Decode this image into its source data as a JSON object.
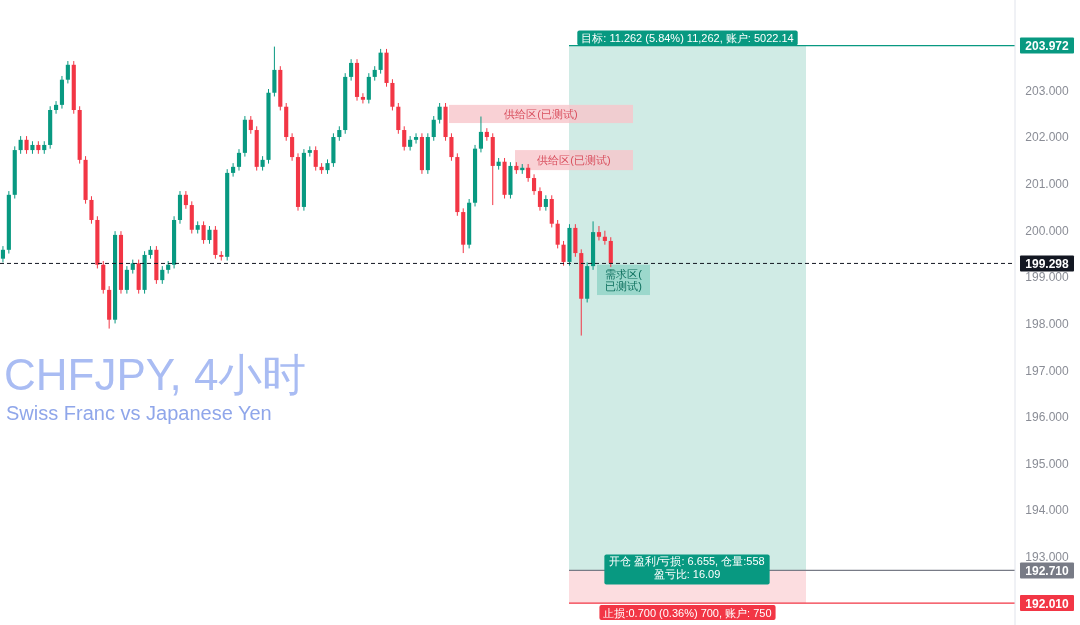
{
  "chart_data": {
    "type": "candlestick",
    "title": "CHFJPY, 4小时",
    "subtitle": "Swiss Franc vs Japanese Yen",
    "categories": [
      null,
      null,
      null,
      null,
      null,
      null,
      null,
      null,
      null,
      null,
      null,
      null,
      null,
      null,
      null,
      null,
      null,
      null,
      null,
      null,
      null,
      null,
      null,
      null,
      null,
      null,
      null,
      null,
      null,
      null,
      null,
      null,
      null,
      null,
      null,
      null,
      null,
      null,
      null,
      null,
      null,
      null,
      null,
      null,
      null,
      null,
      null,
      null,
      null,
      null,
      null,
      null,
      null,
      null,
      null,
      null,
      null,
      null,
      null,
      null,
      null,
      null,
      null,
      null,
      null,
      null,
      null,
      null,
      null,
      null,
      null,
      null,
      null,
      null,
      null,
      null,
      null,
      null,
      null,
      null,
      null,
      null,
      null,
      null,
      null,
      null,
      null,
      null,
      null,
      null,
      null,
      null,
      null,
      null,
      null,
      null,
      null,
      null,
      null,
      null,
      null,
      null,
      null,
      null,
      null,
      null,
      null,
      null,
      null,
      null,
      null,
      null,
      null,
      null,
      null,
      null,
      null,
      null,
      null,
      null,
      null,
      null,
      null,
      null,
      null,
      null,
      null,
      null,
      null,
      null,
      null,
      null,
      null,
      null,
      null,
      null,
      null,
      null,
      null,
      null,
      null,
      null,
      null,
      null,
      null,
      null,
      null,
      null,
      null,
      null,
      null,
      null,
      null,
      null,
      null,
      null,
      null,
      null,
      null,
      null,
      null,
      null,
      null,
      null,
      null,
      null,
      null,
      null,
      null,
      null,
      null,
      null
    ],
    "ohlc": [
      [
        199.4,
        199.67,
        199.32,
        199.59
      ],
      [
        199.59,
        200.85,
        199.51,
        200.77
      ],
      [
        200.77,
        201.81,
        200.69,
        201.73
      ],
      [
        201.73,
        202.03,
        201.65,
        201.95
      ],
      [
        201.95,
        202.03,
        201.65,
        201.73
      ],
      [
        201.73,
        201.92,
        201.65,
        201.84
      ],
      [
        201.84,
        201.92,
        201.65,
        201.73
      ],
      [
        201.73,
        201.92,
        201.65,
        201.84
      ],
      [
        201.84,
        202.67,
        201.76,
        202.59
      ],
      [
        202.59,
        202.78,
        202.51,
        202.7
      ],
      [
        202.7,
        203.32,
        202.62,
        203.24
      ],
      [
        203.24,
        203.64,
        203.16,
        203.56
      ],
      [
        203.56,
        203.64,
        202.51,
        202.59
      ],
      [
        202.59,
        202.67,
        201.44,
        201.52
      ],
      [
        201.52,
        201.6,
        200.58,
        200.66
      ],
      [
        200.66,
        200.74,
        200.15,
        200.23
      ],
      [
        200.23,
        200.31,
        199.19,
        199.27
      ],
      [
        199.27,
        199.35,
        198.65,
        198.73
      ],
      [
        198.73,
        198.81,
        197.9,
        198.09
      ],
      [
        198.09,
        199.99,
        198.01,
        199.91
      ],
      [
        199.91,
        199.99,
        198.65,
        198.73
      ],
      [
        198.73,
        199.24,
        198.65,
        199.16
      ],
      [
        199.16,
        199.38,
        199.08,
        199.3
      ],
      [
        199.3,
        199.38,
        198.65,
        198.73
      ],
      [
        198.73,
        199.56,
        198.65,
        199.48
      ],
      [
        199.48,
        199.67,
        199.4,
        199.59
      ],
      [
        199.59,
        199.67,
        198.86,
        198.94
      ],
      [
        198.94,
        199.24,
        198.86,
        199.16
      ],
      [
        199.16,
        199.35,
        199.08,
        199.27
      ],
      [
        199.27,
        200.31,
        199.19,
        200.23
      ],
      [
        200.23,
        200.85,
        200.15,
        200.77
      ],
      [
        200.77,
        200.85,
        200.47,
        200.55
      ],
      [
        200.55,
        200.63,
        199.94,
        200.02
      ],
      [
        200.02,
        200.2,
        199.94,
        200.12
      ],
      [
        200.12,
        200.2,
        199.72,
        199.8
      ],
      [
        199.8,
        200.1,
        199.72,
        200.02
      ],
      [
        200.02,
        200.1,
        199.4,
        199.48
      ],
      [
        199.48,
        199.56,
        199.36,
        199.44
      ],
      [
        199.44,
        201.32,
        199.36,
        201.24
      ],
      [
        201.24,
        201.45,
        201.16,
        201.37
      ],
      [
        201.37,
        201.75,
        201.29,
        201.67
      ],
      [
        201.67,
        202.46,
        201.59,
        202.38
      ],
      [
        202.38,
        202.46,
        202.08,
        202.16
      ],
      [
        202.16,
        202.24,
        201.29,
        201.37
      ],
      [
        201.37,
        201.6,
        201.29,
        201.52
      ],
      [
        201.52,
        203.04,
        201.44,
        202.96
      ],
      [
        202.96,
        203.95,
        202.88,
        203.45
      ],
      [
        203.45,
        203.53,
        202.58,
        202.66
      ],
      [
        202.66,
        202.74,
        201.93,
        202.01
      ],
      [
        202.01,
        202.09,
        201.5,
        201.58
      ],
      [
        201.58,
        201.66,
        200.43,
        200.51
      ],
      [
        200.51,
        201.75,
        200.43,
        201.67
      ],
      [
        201.67,
        201.81,
        201.59,
        201.73
      ],
      [
        201.73,
        201.81,
        201.29,
        201.37
      ],
      [
        201.37,
        201.45,
        201.22,
        201.3
      ],
      [
        201.3,
        201.53,
        201.22,
        201.45
      ],
      [
        201.45,
        202.09,
        201.37,
        202.01
      ],
      [
        202.01,
        202.24,
        201.93,
        202.16
      ],
      [
        202.16,
        203.38,
        202.08,
        203.3
      ],
      [
        203.3,
        203.68,
        203.22,
        203.6
      ],
      [
        203.6,
        203.68,
        202.79,
        202.87
      ],
      [
        202.87,
        202.95,
        202.73,
        202.81
      ],
      [
        202.81,
        203.38,
        202.73,
        203.3
      ],
      [
        203.3,
        203.53,
        203.22,
        203.45
      ],
      [
        203.45,
        203.9,
        203.37,
        203.82
      ],
      [
        203.82,
        203.9,
        203.09,
        203.17
      ],
      [
        203.17,
        203.25,
        202.58,
        202.66
      ],
      [
        202.66,
        202.74,
        202.08,
        202.16
      ],
      [
        202.16,
        202.24,
        201.72,
        201.8
      ],
      [
        201.8,
        202.03,
        201.72,
        201.95
      ],
      [
        201.95,
        202.09,
        201.87,
        202.01
      ],
      [
        202.01,
        202.09,
        201.22,
        201.3
      ],
      [
        201.3,
        202.09,
        201.22,
        202.01
      ],
      [
        202.01,
        202.46,
        201.93,
        202.38
      ],
      [
        202.38,
        202.74,
        202.3,
        202.66
      ],
      [
        202.66,
        202.74,
        201.93,
        202.01
      ],
      [
        202.01,
        202.09,
        201.5,
        201.58
      ],
      [
        201.58,
        201.66,
        200.32,
        200.4
      ],
      [
        200.4,
        200.48,
        199.52,
        199.7
      ],
      [
        199.7,
        200.68,
        199.62,
        200.6
      ],
      [
        200.6,
        201.84,
        200.52,
        201.76
      ],
      [
        201.76,
        202.45,
        201.68,
        202.12
      ],
      [
        202.12,
        202.2,
        201.93,
        202.01
      ],
      [
        202.01,
        202.09,
        200.55,
        201.39
      ],
      [
        201.39,
        201.56,
        201.31,
        201.48
      ],
      [
        201.48,
        201.56,
        200.69,
        200.77
      ],
      [
        200.77,
        201.47,
        200.69,
        201.39
      ],
      [
        201.39,
        201.47,
        201.22,
        201.3
      ],
      [
        201.3,
        201.43,
        201.22,
        201.35
      ],
      [
        201.35,
        201.43,
        201.05,
        201.13
      ],
      [
        201.13,
        201.21,
        200.77,
        200.85
      ],
      [
        200.85,
        200.93,
        200.43,
        200.51
      ],
      [
        200.51,
        200.76,
        200.43,
        200.68
      ],
      [
        200.68,
        200.76,
        200.07,
        200.15
      ],
      [
        200.15,
        200.23,
        199.62,
        199.7
      ],
      [
        199.7,
        199.78,
        199.25,
        199.33
      ],
      [
        199.33,
        200.14,
        199.25,
        200.06
      ],
      [
        200.06,
        200.14,
        199.44,
        199.52
      ],
      [
        199.52,
        199.6,
        197.75,
        198.54
      ],
      [
        198.54,
        199.32,
        198.46,
        199.24
      ],
      [
        199.24,
        200.2,
        199.16,
        199.97
      ],
      [
        199.97,
        200.1,
        199.79,
        199.87
      ],
      [
        199.87,
        200.0,
        199.7,
        199.78
      ],
      [
        199.78,
        199.86,
        199.22,
        199.3
      ],
      null,
      null,
      null,
      null,
      null,
      null,
      null,
      null,
      null,
      null,
      null,
      null,
      null,
      null,
      null,
      null,
      null,
      null,
      null,
      null,
      null,
      null,
      null,
      null,
      null,
      null,
      null,
      null,
      null,
      null,
      null,
      null,
      null,
      null,
      null,
      null,
      null,
      null,
      null,
      null,
      null,
      null,
      null,
      null,
      null,
      null,
      null,
      null,
      null,
      null,
      null,
      null,
      null,
      null,
      null,
      null,
      null,
      null,
      null,
      null,
      null,
      null,
      null,
      null,
      null,
      null,
      null,
      null
    ],
    "ylim": [
      191.54,
      204.95
    ],
    "yticks": [
      {
        "value": 193,
        "label": "193.000"
      },
      {
        "value": 194,
        "label": "194.000"
      },
      {
        "value": 195,
        "label": "195.000"
      },
      {
        "value": 196,
        "label": "196.000"
      },
      {
        "value": 197,
        "label": "197.000"
      },
      {
        "value": 198,
        "label": "198.000"
      },
      {
        "value": 199,
        "label": "199.000"
      },
      {
        "value": 200,
        "label": "200.000"
      },
      {
        "value": 201,
        "label": "201.000"
      },
      {
        "value": 202,
        "label": "202.000"
      },
      {
        "value": 203,
        "label": "203.000"
      }
    ],
    "tick_labels": "y",
    "bands": [
      {
        "axis": "y",
        "from": 192.71,
        "to": 203.972,
        "label": "目标: 11.262 (5.84%) 11,262, 账户: 5022.14",
        "color": "#d0ebe5"
      },
      {
        "axis": "y",
        "from": 192.01,
        "to": 192.71,
        "label": "止损:0.700 (0.36%) 700, 账户: 750",
        "color": "#fcdde0"
      },
      {
        "axis": "y",
        "from": 202.31,
        "to": 202.7,
        "label": "供给区(已测试)",
        "color": "#f7c6cb"
      },
      {
        "axis": "y",
        "from": 201.3,
        "to": 201.73,
        "label": "供给区(已测试)",
        "color": "#f7c6cb"
      },
      {
        "axis": "y",
        "from": 198.62,
        "to": 199.27,
        "label": "需求区(已测试)",
        "color": "#8fd3c5"
      }
    ],
    "ref_lines": [
      {
        "axis": "y",
        "value": 199.298,
        "label": "199.298",
        "color": "#131722",
        "line_style": "dashed"
      },
      {
        "axis": "y",
        "value": 203.972,
        "label": "203.972",
        "color": "#089981",
        "line_style": "solid"
      },
      {
        "axis": "y",
        "value": 192.71,
        "label": "192.710",
        "color": "#787b86",
        "line_style": "solid"
      },
      {
        "axis": "y",
        "value": 192.01,
        "label": "192.010",
        "color": "#f23645",
        "line_style": "solid"
      }
    ],
    "annotations": [
      "开仓 盈利/亏损: 6.655, 仓量:558",
      "盈亏比: 16.09"
    ],
    "grid": false
  }
}
